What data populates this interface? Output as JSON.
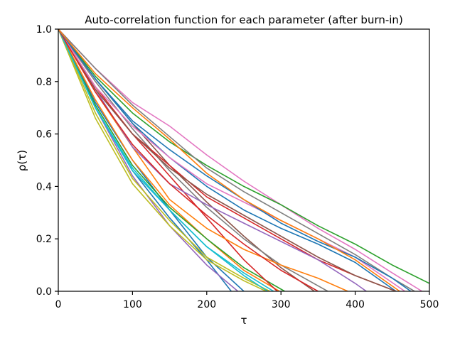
{
  "chart_data": {
    "type": "line",
    "title": "Auto-correlation function for each parameter (after burn-in)",
    "xlabel": "τ",
    "ylabel": "ρ(τ)",
    "xlim": [
      0,
      500
    ],
    "ylim": [
      0,
      1.0
    ],
    "xticks": [
      "0",
      "100",
      "200",
      "300",
      "400",
      "500"
    ],
    "yticks": [
      "0.0",
      "0.2",
      "0.4",
      "0.6",
      "0.8",
      "1.0"
    ],
    "grid": false,
    "legend": "none",
    "series": [
      {
        "color": "#1f77b4",
        "x": [
          0,
          50,
          100,
          150,
          200,
          233
        ],
        "y": [
          1.0,
          0.7,
          0.46,
          0.28,
          0.12,
          0.0
        ]
      },
      {
        "color": "#1f77b4",
        "x": [
          0,
          50,
          100,
          150,
          200,
          250
        ],
        "y": [
          1.0,
          0.72,
          0.5,
          0.31,
          0.13,
          0.0
        ]
      },
      {
        "color": "#ff7f0e",
        "x": [
          0,
          50,
          100,
          150,
          200,
          250,
          298
        ],
        "y": [
          1.0,
          0.73,
          0.5,
          0.33,
          0.2,
          0.08,
          0.0
        ]
      },
      {
        "color": "#2ca02c",
        "x": [
          0,
          50,
          100,
          150,
          200,
          250,
          305
        ],
        "y": [
          1.0,
          0.71,
          0.48,
          0.32,
          0.2,
          0.09,
          0.0
        ]
      },
      {
        "color": "#d62728",
        "x": [
          0,
          50,
          100,
          150,
          200,
          250,
          295
        ],
        "y": [
          1.0,
          0.78,
          0.6,
          0.44,
          0.28,
          0.12,
          0.0
        ]
      },
      {
        "color": "#9467bd",
        "x": [
          0,
          50,
          100,
          150,
          200,
          242
        ],
        "y": [
          1.0,
          0.7,
          0.44,
          0.25,
          0.1,
          0.0
        ]
      },
      {
        "color": "#8c564b",
        "x": [
          0,
          50,
          100,
          150,
          200,
          250,
          300,
          345
        ],
        "y": [
          1.0,
          0.81,
          0.64,
          0.48,
          0.34,
          0.21,
          0.09,
          0.0
        ]
      },
      {
        "color": "#e377c2",
        "x": [
          0,
          50,
          100,
          150,
          200,
          250,
          300,
          350,
          400,
          450,
          490
        ],
        "y": [
          1.0,
          0.85,
          0.72,
          0.63,
          0.52,
          0.42,
          0.33,
          0.24,
          0.16,
          0.07,
          0.0
        ]
      },
      {
        "color": "#7f7f7f",
        "x": [
          0,
          50,
          100,
          150,
          200,
          250,
          300,
          363
        ],
        "y": [
          1.0,
          0.8,
          0.62,
          0.46,
          0.32,
          0.2,
          0.1,
          0.0
        ]
      },
      {
        "color": "#bcbd22",
        "x": [
          0,
          50,
          100,
          150,
          200,
          250,
          285
        ],
        "y": [
          1.0,
          0.68,
          0.43,
          0.27,
          0.13,
          0.05,
          0.0
        ]
      },
      {
        "color": "#17becf",
        "x": [
          0,
          50,
          100,
          150,
          200,
          250,
          282
        ],
        "y": [
          1.0,
          0.7,
          0.47,
          0.31,
          0.17,
          0.06,
          0.0
        ]
      },
      {
        "color": "#1f77b4",
        "x": [
          0,
          50,
          100,
          150,
          200,
          250,
          300,
          350,
          400,
          455
        ],
        "y": [
          1.0,
          0.81,
          0.64,
          0.51,
          0.4,
          0.31,
          0.24,
          0.18,
          0.11,
          0.0
        ]
      },
      {
        "color": "#ff7f0e",
        "x": [
          0,
          50,
          100,
          150,
          200,
          250,
          300,
          350,
          390
        ],
        "y": [
          1.0,
          0.76,
          0.55,
          0.35,
          0.24,
          0.16,
          0.1,
          0.05,
          0.0
        ]
      },
      {
        "color": "#2ca02c",
        "x": [
          0,
          50,
          100,
          150,
          200,
          250,
          300,
          350,
          400,
          450,
          500
        ],
        "y": [
          1.0,
          0.82,
          0.68,
          0.57,
          0.48,
          0.4,
          0.33,
          0.25,
          0.18,
          0.1,
          0.03
        ]
      },
      {
        "color": "#d62728",
        "x": [
          0,
          50,
          100,
          150,
          200,
          250,
          300,
          350,
          400,
          455
        ],
        "y": [
          1.0,
          0.77,
          0.6,
          0.48,
          0.36,
          0.28,
          0.2,
          0.12,
          0.06,
          0.0
        ]
      },
      {
        "color": "#9467bd",
        "x": [
          0,
          50,
          100,
          150,
          200,
          250,
          300,
          350,
          400,
          415
        ],
        "y": [
          1.0,
          0.77,
          0.55,
          0.41,
          0.33,
          0.26,
          0.19,
          0.12,
          0.03,
          0.0
        ]
      },
      {
        "color": "#8c564b",
        "x": [
          0,
          50,
          100,
          150,
          200,
          250,
          300,
          350,
          400,
          455
        ],
        "y": [
          1.0,
          0.77,
          0.6,
          0.47,
          0.37,
          0.29,
          0.21,
          0.13,
          0.06,
          0.0
        ]
      },
      {
        "color": "#e377c2",
        "x": [
          0,
          50,
          100,
          150,
          200,
          250,
          300,
          350,
          400,
          467
        ],
        "y": [
          1.0,
          0.78,
          0.63,
          0.51,
          0.41,
          0.34,
          0.27,
          0.2,
          0.13,
          0.0
        ]
      },
      {
        "color": "#7f7f7f",
        "x": [
          0,
          50,
          100,
          150,
          200,
          250,
          300,
          350,
          400,
          450,
          480
        ],
        "y": [
          1.0,
          0.85,
          0.71,
          0.59,
          0.47,
          0.38,
          0.3,
          0.22,
          0.14,
          0.05,
          0.0
        ]
      },
      {
        "color": "#bcbd22",
        "x": [
          0,
          50,
          100,
          150,
          200,
          250,
          280
        ],
        "y": [
          1.0,
          0.66,
          0.41,
          0.25,
          0.12,
          0.04,
          0.0
        ]
      },
      {
        "color": "#17becf",
        "x": [
          0,
          50,
          100,
          150,
          200,
          250,
          290
        ],
        "y": [
          1.0,
          0.7,
          0.46,
          0.31,
          0.17,
          0.07,
          0.0
        ]
      },
      {
        "color": "#d62728",
        "x": [
          0,
          50,
          100,
          150,
          200,
          250,
          300,
          350
        ],
        "y": [
          1.0,
          0.76,
          0.56,
          0.41,
          0.29,
          0.18,
          0.08,
          0.0
        ]
      },
      {
        "color": "#1f77b4",
        "x": [
          0,
          50,
          100,
          150,
          200,
          250,
          300,
          350,
          400,
          450,
          475
        ],
        "y": [
          1.0,
          0.81,
          0.65,
          0.54,
          0.44,
          0.35,
          0.26,
          0.19,
          0.13,
          0.05,
          0.0
        ]
      },
      {
        "color": "#ff7f0e",
        "x": [
          0,
          50,
          100,
          150,
          200,
          250,
          300,
          350,
          400,
          460
        ],
        "y": [
          1.0,
          0.83,
          0.7,
          0.58,
          0.45,
          0.35,
          0.27,
          0.2,
          0.12,
          0.0
        ]
      }
    ]
  }
}
